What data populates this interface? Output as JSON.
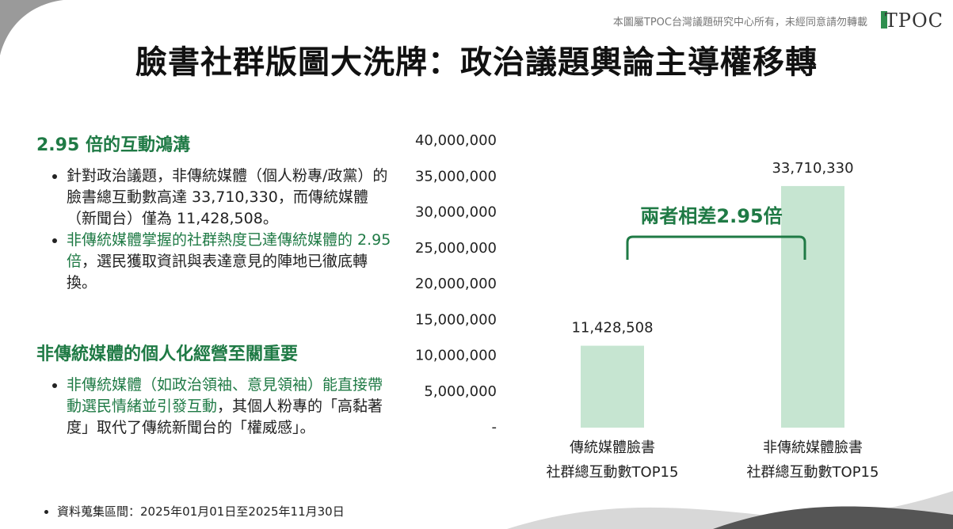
{
  "header": {
    "copyright": "本圖屬TPOC台灣議題研究中心所有，未經同意請勿轉載",
    "logo": "TPOC"
  },
  "title": "臉書社群版圖大洗牌：政治議題輿論主導權移轉",
  "highlight_color": "#1f7a45",
  "sections": [
    {
      "heading": "2.95 倍的互動鴻溝",
      "bullets": [
        [
          {
            "text": "針對政治議題，非傳統媒體（個人粉專/政黨）的臉書總互動數高達 33,710,330，而傳統媒體（新聞台）僅為 11,428,508。",
            "highlight": false
          }
        ],
        [
          {
            "text": "非傳統媒體掌握的社群熱度已達傳統媒體的 2.95 倍",
            "highlight": true
          },
          {
            "text": "，選民獲取資訊與表達意見的陣地已徹底轉換。",
            "highlight": false
          }
        ]
      ]
    },
    {
      "heading": "非傳統媒體的個人化經營至關重要",
      "bullets": [
        [
          {
            "text": "非傳統媒體（如政治領袖、意見領袖）能直接帶動選民情緒並引發互動",
            "highlight": true
          },
          {
            "text": "，其個人粉專的「高黏著度」取代了傳統新聞台的「權威感」。",
            "highlight": false
          }
        ]
      ]
    }
  ],
  "footnote": "資料蒐集區間：2025年01月01日至2025年11月30日",
  "chart_data": {
    "type": "bar",
    "categories": [
      "傳統媒體臉書\n社群總互動數TOP15",
      "非傳統媒體臉書\n社群總互動數TOP15"
    ],
    "values": [
      11428508,
      33710330
    ],
    "value_labels": [
      "11,428,508",
      "33,710,330"
    ],
    "color": "#c6e5d1",
    "ylim": [
      0,
      40000000
    ],
    "yticks": [
      {
        "value": 0,
        "label": "-"
      },
      {
        "value": 5000000,
        "label": "5,000,000"
      },
      {
        "value": 10000000,
        "label": "10,000,000"
      },
      {
        "value": 15000000,
        "label": "15,000,000"
      },
      {
        "value": 20000000,
        "label": "20,000,000"
      },
      {
        "value": 25000000,
        "label": "25,000,000"
      },
      {
        "value": 30000000,
        "label": "30,000,000"
      },
      {
        "value": 35000000,
        "label": "35,000,000"
      },
      {
        "value": 40000000,
        "label": "40,000,000"
      }
    ],
    "grid": false,
    "annotation": "兩者相差2.95倍",
    "annotation_color": "#1f7a45"
  }
}
